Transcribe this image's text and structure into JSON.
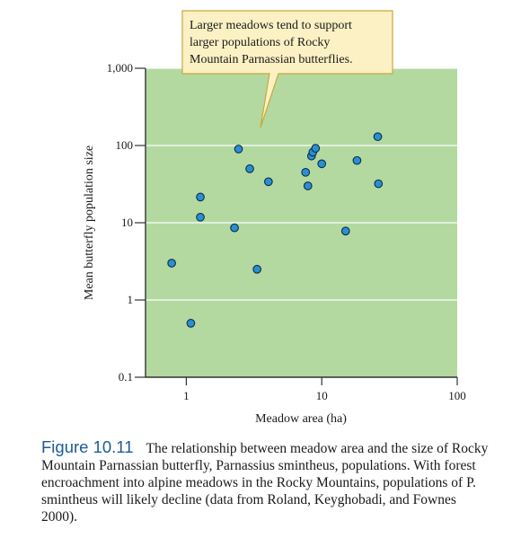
{
  "chart_data": {
    "type": "scatter",
    "xlabel": "Meadow area (ha)",
    "ylabel": "Mean butterfly population size",
    "x_scale": "log",
    "y_scale": "log",
    "xlim": [
      0.5,
      100
    ],
    "ylim": [
      0.1,
      1000
    ],
    "x_ticks": [
      {
        "value": 1,
        "label": "1"
      },
      {
        "value": 10,
        "label": "10"
      },
      {
        "value": 100,
        "label": "100"
      }
    ],
    "y_ticks": [
      {
        "value": 0.1,
        "label": "0.1"
      },
      {
        "value": 1,
        "label": "1"
      },
      {
        "value": 10,
        "label": "10"
      },
      {
        "value": 100,
        "label": "100"
      },
      {
        "value": 1000,
        "label": "1,000"
      }
    ],
    "grid": true,
    "points": [
      {
        "x": 0.78,
        "y": 3.0
      },
      {
        "x": 1.08,
        "y": 0.5
      },
      {
        "x": 1.27,
        "y": 21.5
      },
      {
        "x": 1.27,
        "y": 11.8
      },
      {
        "x": 2.27,
        "y": 8.6
      },
      {
        "x": 2.43,
        "y": 90
      },
      {
        "x": 2.94,
        "y": 50
      },
      {
        "x": 3.33,
        "y": 2.5
      },
      {
        "x": 4.04,
        "y": 34
      },
      {
        "x": 7.6,
        "y": 45
      },
      {
        "x": 7.9,
        "y": 30
      },
      {
        "x": 8.4,
        "y": 73
      },
      {
        "x": 8.6,
        "y": 82
      },
      {
        "x": 9.0,
        "y": 92
      },
      {
        "x": 10.0,
        "y": 58
      },
      {
        "x": 15.0,
        "y": 7.8
      },
      {
        "x": 18.2,
        "y": 64
      },
      {
        "x": 25.9,
        "y": 130
      },
      {
        "x": 26.2,
        "y": 32
      }
    ],
    "annotation": {
      "lines": [
        "Larger meadows tend to support",
        "larger populations of Rocky",
        "Mountain Parnassian butterflies."
      ]
    },
    "colors": {
      "plot_background": "#b3d9a0",
      "gridline": "#ffffff",
      "point_fill": "#2a8fd2",
      "point_stroke": "#0d2c45",
      "callout_fill": "#fbf1c4",
      "callout_stroke": "#c9a93c"
    }
  },
  "caption": {
    "figure_label": "Figure 10.11",
    "text": "The relationship between meadow area and the size of Rocky Mountain Parnassian butterfly, Parnassius smintheus, populations. With forest encroachment into alpine meadows in the Rocky Mountains, populations of P. smintheus will likely decline (data from Roland, Keyghobadi, and Fownes 2000)."
  }
}
